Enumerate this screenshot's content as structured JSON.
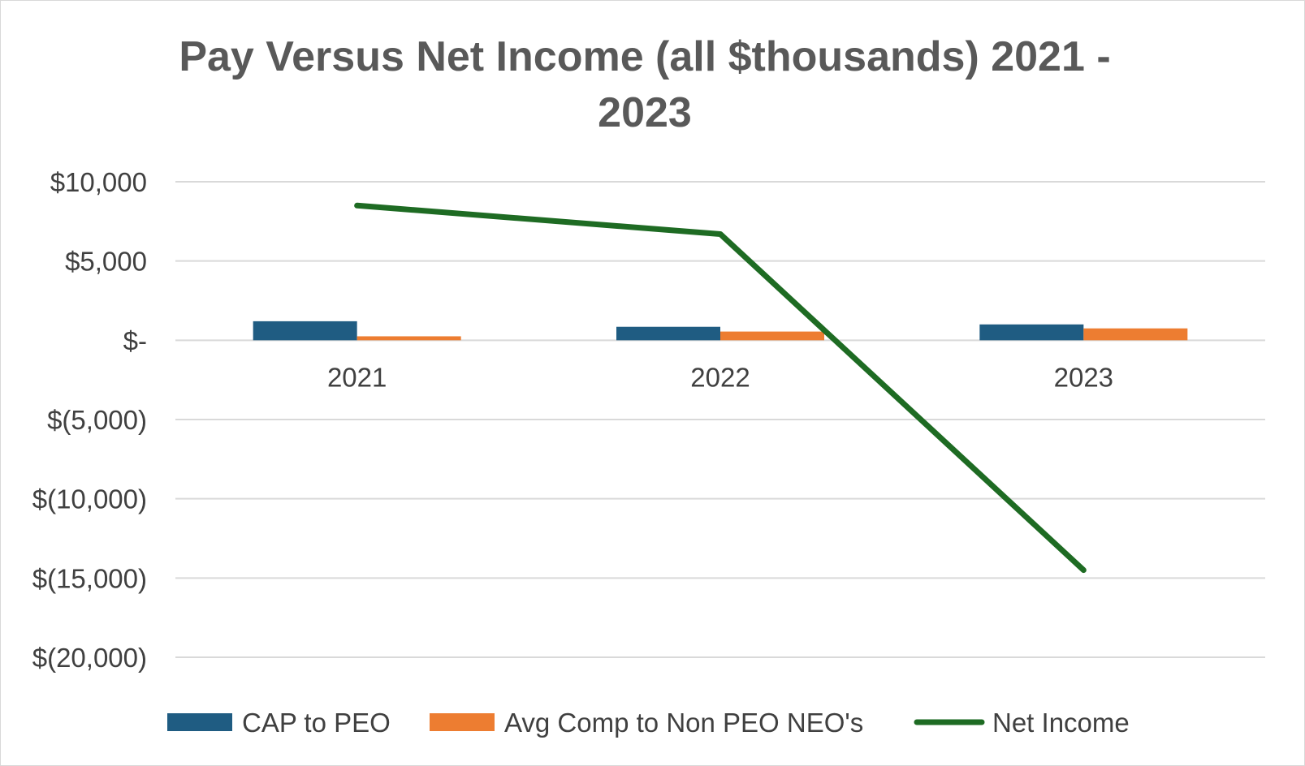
{
  "chart_data": {
    "type": "bar",
    "title_lines": [
      "Pay Versus Net Income  (all $thousands) 2021 -",
      "2023"
    ],
    "categories": [
      "2021",
      "2022",
      "2023"
    ],
    "y_ticks": [
      {
        "value": 10000,
        "label": "$10,000"
      },
      {
        "value": 5000,
        "label": "$5,000"
      },
      {
        "value": 0,
        "label": "$-"
      },
      {
        "value": -5000,
        "label": "$(5,000)"
      },
      {
        "value": -10000,
        "label": "$(10,000)"
      },
      {
        "value": -15000,
        "label": "$(15,000)"
      },
      {
        "value": -20000,
        "label": "$(20,000)"
      }
    ],
    "ylim": [
      -20000,
      10000
    ],
    "grid": true,
    "legend_position": "bottom",
    "series": [
      {
        "name": "CAP to PEO",
        "kind": "bar",
        "color": "#1f5c82",
        "values": [
          1200,
          850,
          1000
        ]
      },
      {
        "name": "Avg Comp to Non PEO NEO's",
        "kind": "bar",
        "color": "#ed7d31",
        "values": [
          250,
          550,
          750
        ]
      },
      {
        "name": "Net Income",
        "kind": "line",
        "color": "#1e6b23",
        "values": [
          8500,
          6700,
          -14500
        ]
      }
    ]
  }
}
